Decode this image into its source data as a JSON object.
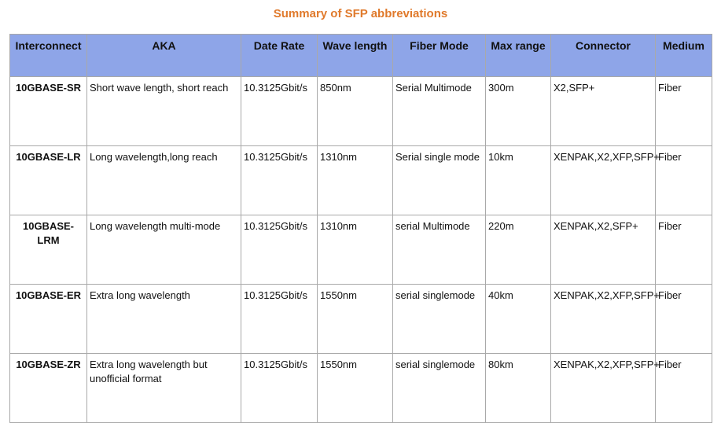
{
  "title": "Summary of SFP abbreviations",
  "table": {
    "headers": [
      "Interconnect",
      "AKA",
      "Date Rate",
      "Wave length",
      "Fiber Mode",
      "Max range",
      "Connector",
      "Medium"
    ],
    "rows": [
      [
        "10GBASE-SR",
        "Short wave length, short reach",
        "10.3125Gbit/s",
        "850nm",
        "Serial Multimode",
        "300m",
        "X2,SFP+",
        "Fiber"
      ],
      [
        "10GBASE-LR",
        "Long wavelength,long reach",
        "10.3125Gbit/s",
        "1310nm",
        "Serial single mode",
        "10km",
        "XENPAK,X2,XFP,SFP+",
        "Fiber"
      ],
      [
        "10GBASE-LRM",
        "Long wavelength multi-mode",
        "10.3125Gbit/s",
        "1310nm",
        "serial Multimode",
        "220m",
        "XENPAK,X2,SFP+",
        "Fiber"
      ],
      [
        "10GBASE-ER",
        "Extra long wavelength",
        "10.3125Gbit/s",
        "1550nm",
        "serial singlemode",
        "40km",
        "XENPAK,X2,XFP,SFP+",
        "Fiber"
      ],
      [
        "10GBASE-ZR",
        "Extra long wavelength but unofficial format",
        "10.3125Gbit/s",
        "1550nm",
        "serial singlemode",
        "80km",
        "XENPAK,X2,XFP,SFP+",
        "Fiber"
      ]
    ]
  },
  "colors": {
    "title": "#e07a2c",
    "header_bg": "#8ea5e8",
    "border": "#a9a9a9"
  }
}
